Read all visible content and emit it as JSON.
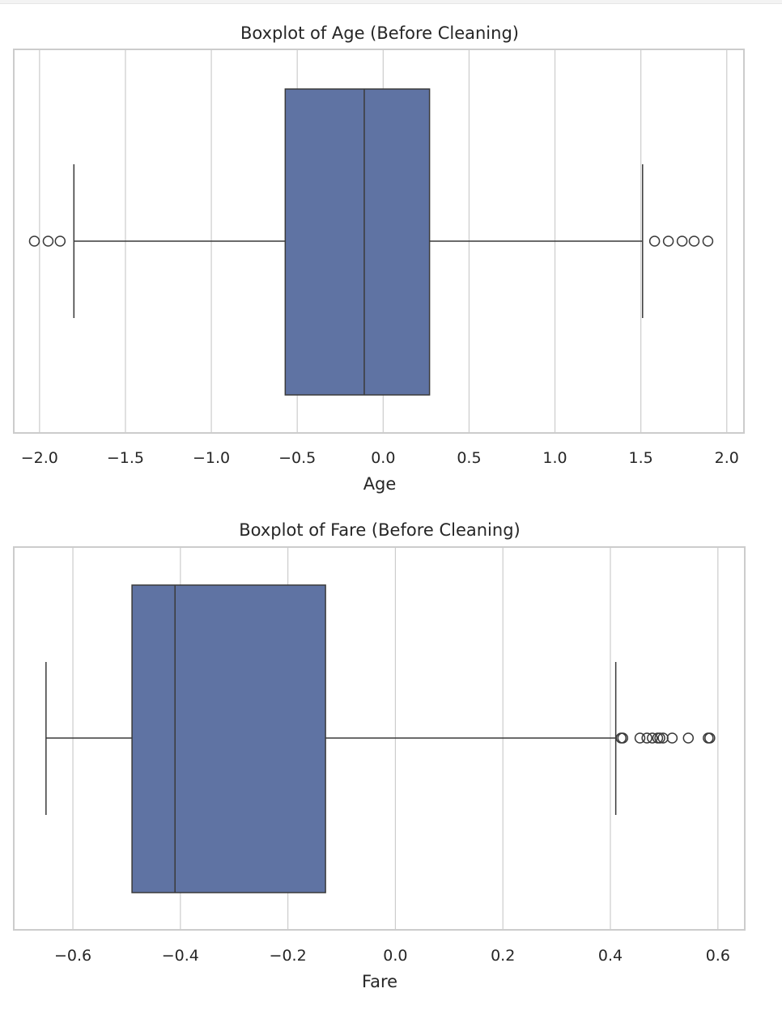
{
  "chart_data": [
    {
      "type": "boxplot",
      "title": "Boxplot of Age (Before Cleaning)",
      "xlabel": "Age",
      "ylabel": "",
      "xlim": [
        -2.15,
        2.1
      ],
      "ticks": [
        -2.0,
        -1.5,
        -1.0,
        -0.5,
        0.0,
        0.5,
        1.0,
        1.5,
        2.0
      ],
      "tick_labels": [
        "−2.0",
        "−1.5",
        "−1.0",
        "−0.5",
        "0.0",
        "0.5",
        "1.0",
        "1.5",
        "2.0"
      ],
      "grid": true,
      "box_color": "#5f73a3",
      "stats": {
        "whisker_low": -1.8,
        "q1": -0.57,
        "median": -0.11,
        "q3": 0.27,
        "whisker_high": 1.51
      },
      "outliers": [
        -2.03,
        -1.95,
        -1.88,
        1.58,
        1.66,
        1.74,
        1.81,
        1.89
      ]
    },
    {
      "type": "boxplot",
      "title": "Boxplot of Fare (Before Cleaning)",
      "xlabel": "Fare",
      "ylabel": "",
      "xlim": [
        -0.71,
        0.65
      ],
      "ticks": [
        -0.6,
        -0.4,
        -0.2,
        0.0,
        0.2,
        0.4,
        0.6
      ],
      "tick_labels": [
        "−0.6",
        "−0.4",
        "−0.2",
        "0.0",
        "0.2",
        "0.4",
        "0.6"
      ],
      "grid": true,
      "box_color": "#5f73a3",
      "stats": {
        "whisker_low": -0.65,
        "q1": -0.49,
        "median": -0.41,
        "q3": -0.13,
        "whisker_high": 0.41
      },
      "outliers": [
        0.42,
        0.423,
        0.455,
        0.468,
        0.478,
        0.488,
        0.492,
        0.498,
        0.515,
        0.545,
        0.582,
        0.585
      ]
    }
  ]
}
